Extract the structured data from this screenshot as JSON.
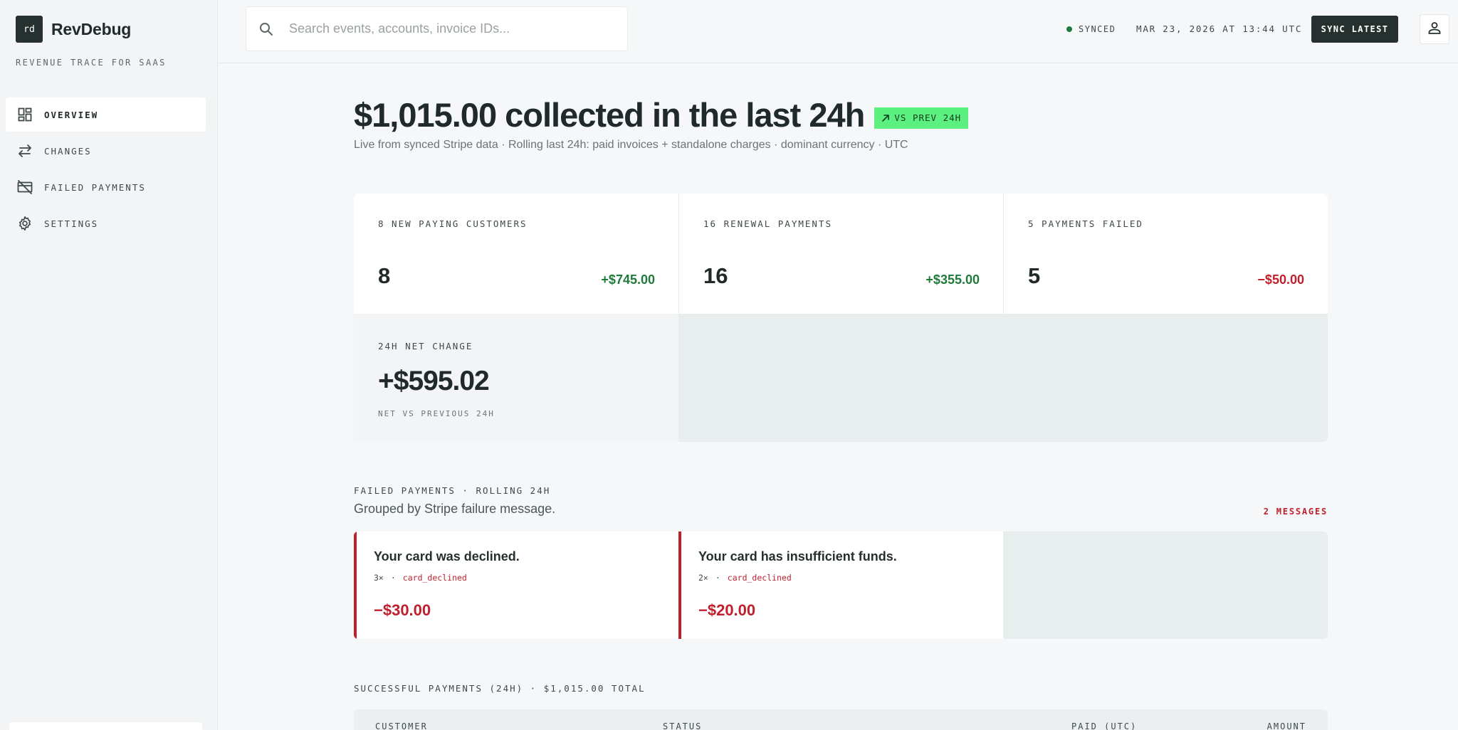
{
  "brand": {
    "mark": "rd",
    "name": "RevDebug",
    "tagline": "REVENUE TRACE FOR SAAS"
  },
  "nav": {
    "items": [
      {
        "label": "OVERVIEW",
        "icon": "dashboard-grid-icon",
        "active": true
      },
      {
        "label": "CHANGES",
        "icon": "swap-arrows-icon",
        "active": false
      },
      {
        "label": "FAILED PAYMENTS",
        "icon": "card-off-icon",
        "active": false
      },
      {
        "label": "SETTINGS",
        "icon": "gear-icon",
        "active": false
      }
    ]
  },
  "topbar": {
    "search_placeholder": "Search events, accounts, invoice IDs...",
    "sync_label": "SYNCED",
    "sync_time": "MAR 23, 2026 AT 13:44 UTC",
    "sync_button": "SYNC LATEST",
    "user_icon": "user-icon"
  },
  "hero": {
    "headline": "$1,015.00 collected in the last 24h",
    "badge": "VS PREV 24H",
    "subline": "Live from synced Stripe data · Rolling last 24h: paid invoices + standalone charges · dominant currency · UTC"
  },
  "kpis": [
    {
      "title": "8 NEW PAYING CUSTOMERS",
      "value": "8",
      "delta": "+$745.00",
      "tone": "positive"
    },
    {
      "title": "16 RENEWAL PAYMENTS",
      "value": "16",
      "delta": "+$355.00",
      "tone": "positive"
    },
    {
      "title": "5 PAYMENTS FAILED",
      "value": "5",
      "delta": "−$50.00",
      "tone": "negative"
    }
  ],
  "net": {
    "title": "24H NET CHANGE",
    "value": "+$595.02",
    "caption": "NET VS PREVIOUS 24H"
  },
  "failed": {
    "label": "FAILED PAYMENTS · ROLLING 24H",
    "subtitle": "Grouped by Stripe failure message.",
    "count": "2 MESSAGES",
    "groups": [
      {
        "message": "Your card was declined.",
        "count": "3×",
        "separator": "·",
        "code": "card_declined",
        "amount": "−$30.00"
      },
      {
        "message": "Your card has insufficient funds.",
        "count": "2×",
        "separator": "·",
        "code": "card_declined",
        "amount": "−$20.00"
      }
    ]
  },
  "payments": {
    "label": "SUCCESSFUL PAYMENTS (24H) · $1,015.00 TOTAL",
    "columns": [
      "CUSTOMER",
      "STATUS",
      "PAID (UTC)",
      "AMOUNT"
    ]
  },
  "colors": {
    "accent_dark": "#26302f",
    "positive": "#1f7a3a",
    "negative": "#c0202c",
    "badge_green": "#5cf080"
  }
}
